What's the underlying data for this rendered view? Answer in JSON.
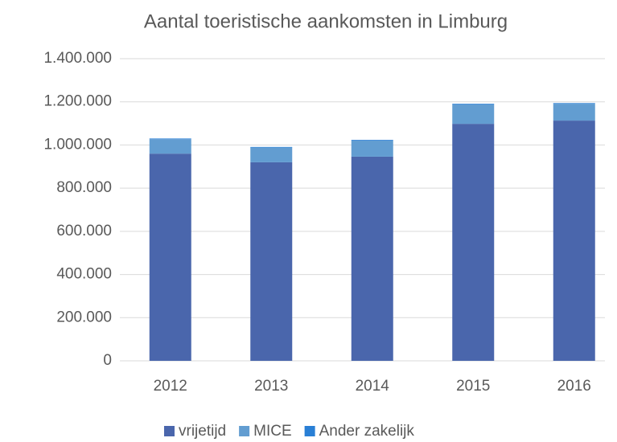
{
  "chart_data": {
    "type": "stacked_bar",
    "title": "Aantal toeristische aankomsten in Limburg",
    "categories": [
      "2012",
      "2013",
      "2014",
      "2015",
      "2016"
    ],
    "series": [
      {
        "name": "vrijetijd",
        "color": "#4a66ac",
        "values": [
          960000,
          920000,
          946000,
          1098000,
          1113000
        ]
      },
      {
        "name": "MICE",
        "color": "#629dd1",
        "values": [
          67000,
          68000,
          75000,
          90000,
          78000
        ]
      },
      {
        "name": "Ander zakelijk",
        "color": "#297fd5",
        "values": [
          3000,
          3000,
          3000,
          3000,
          3000
        ]
      }
    ],
    "ylim": [
      0,
      1400000
    ],
    "yticks": [
      0,
      {
        "value": 200000,
        "label": "200.000"
      },
      {
        "value": 400000,
        "label": "400.000"
      },
      {
        "value": 600000,
        "label": "600.000"
      },
      {
        "value": 800000,
        "label": "800.000"
      },
      {
        "value": 1000000,
        "label": "1.000.000"
      },
      {
        "value": 1200000,
        "label": "1.200.000"
      },
      {
        "value": 1400000,
        "label": "1.400.000"
      }
    ],
    "grid": true,
    "legend": "bottom"
  }
}
